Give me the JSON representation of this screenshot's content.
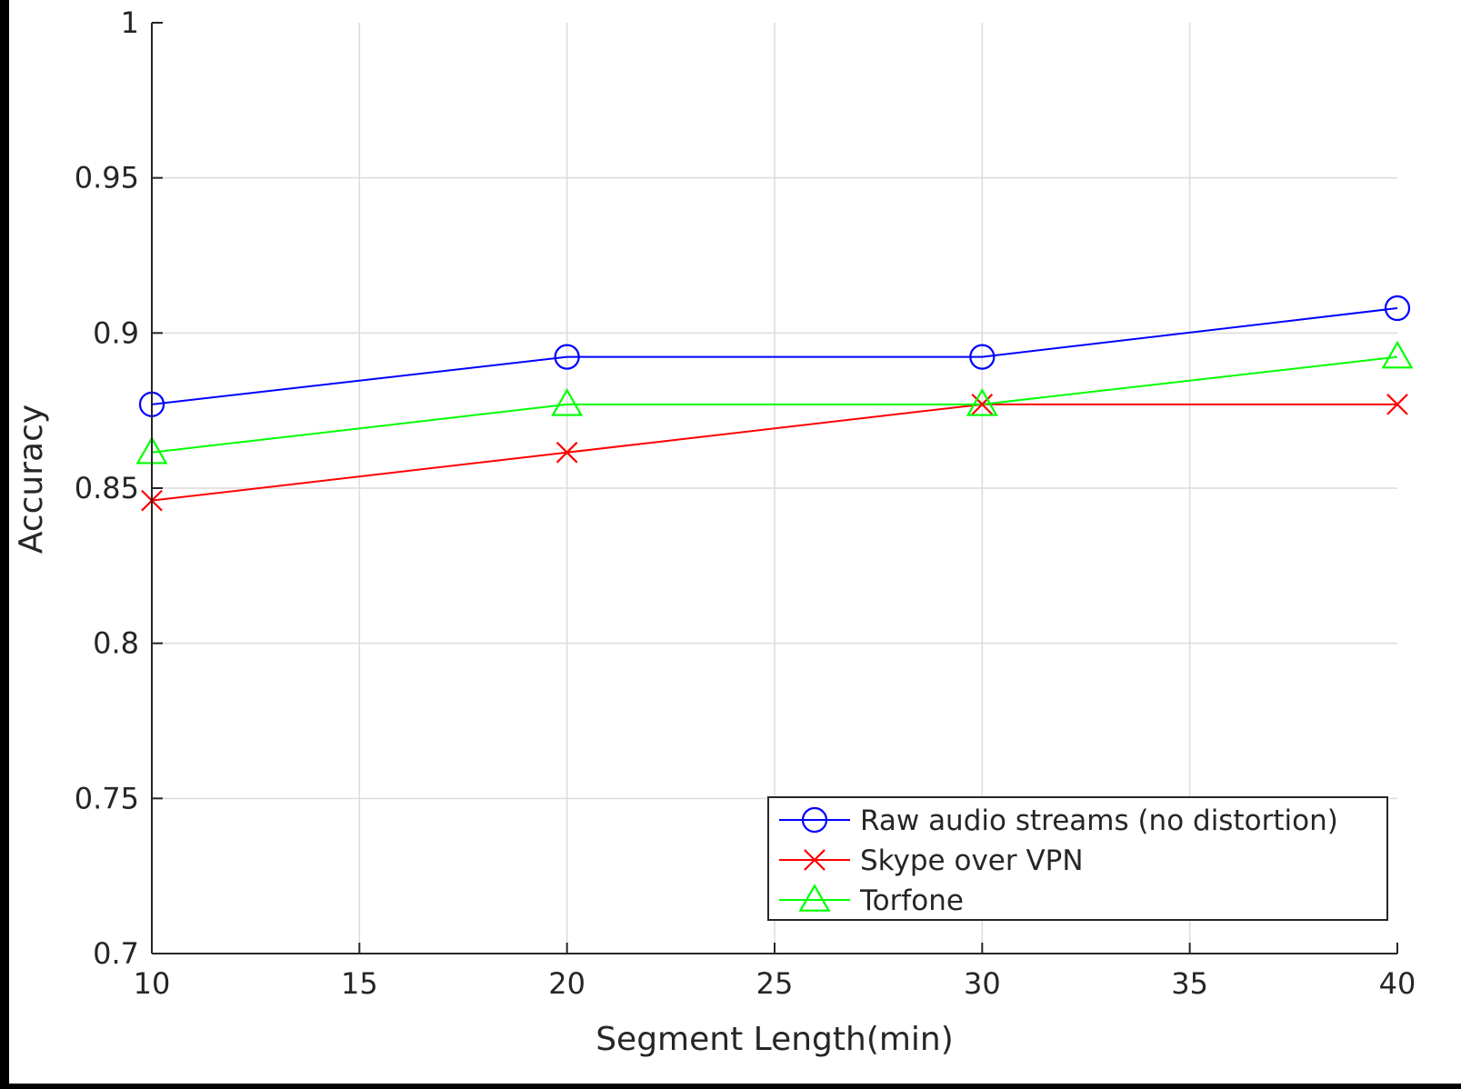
{
  "chart_data": {
    "type": "line",
    "title": "",
    "xlabel": "Segment Length(min)",
    "ylabel": "Accuracy",
    "x": [
      10,
      20,
      30,
      40
    ],
    "xlim": [
      10,
      40
    ],
    "ylim": [
      0.7,
      1
    ],
    "xticks": [
      10,
      15,
      20,
      25,
      30,
      35,
      40
    ],
    "yticks": [
      0.7,
      0.75,
      0.8,
      0.85,
      0.9,
      0.95,
      1
    ],
    "xtick_labels": [
      "10",
      "15",
      "20",
      "25",
      "30",
      "35",
      "40"
    ],
    "ytick_labels": [
      "0.7",
      "0.75",
      "0.8",
      "0.85",
      "0.9",
      "0.95",
      "1"
    ],
    "grid": true,
    "legend_position": "bottom-right",
    "series": [
      {
        "name": "Raw audio streams (no distortion)",
        "values": [
          0.877,
          0.8923,
          0.8923,
          0.908
        ],
        "color": "#0000ff",
        "marker": "circle"
      },
      {
        "name": "Skype over VPN",
        "values": [
          0.846,
          0.8615,
          0.877,
          0.877
        ],
        "color": "#ff0000",
        "marker": "x"
      },
      {
        "name": "Torfone",
        "values": [
          0.8615,
          0.877,
          0.877,
          0.8923
        ],
        "color": "#00ff00",
        "marker": "triangle"
      }
    ]
  }
}
